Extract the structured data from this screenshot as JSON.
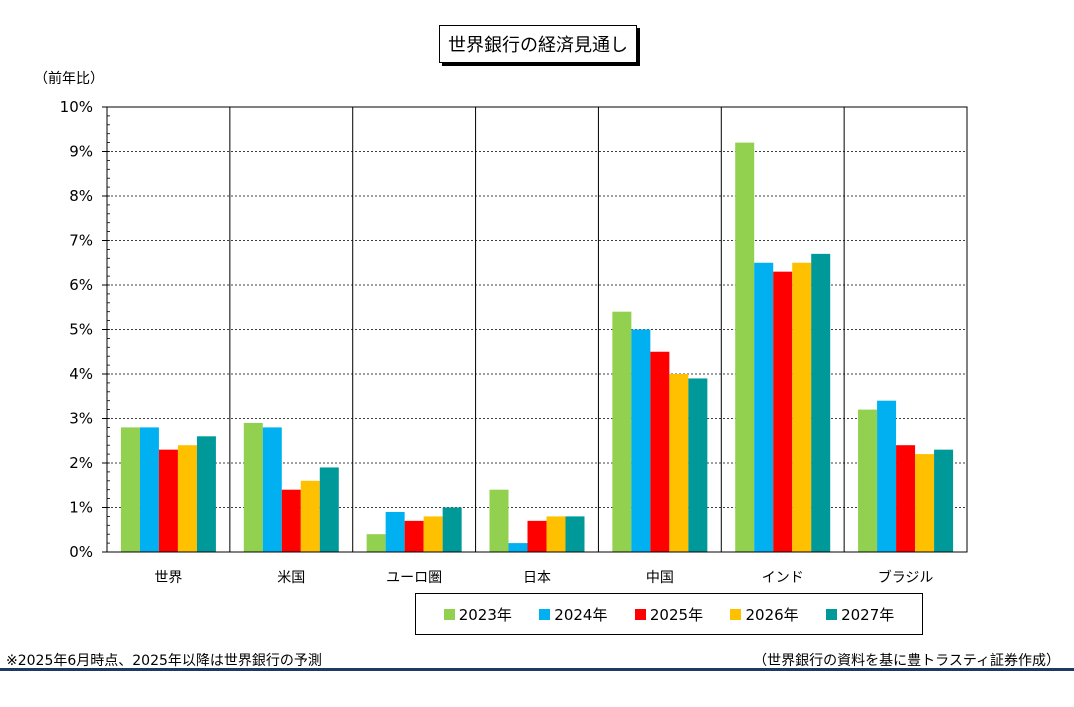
{
  "chart_data": {
    "type": "bar",
    "title": "世界銀行の経済見通し",
    "ylabel": "（前年比）",
    "ylim": [
      0,
      10
    ],
    "y_ticks": [
      "0%",
      "1%",
      "2%",
      "3%",
      "4%",
      "5%",
      "6%",
      "7%",
      "8%",
      "9%",
      "10%"
    ],
    "grid": true,
    "legend_position": "bottom",
    "categories": [
      "世界",
      "米国",
      "ユーロ圏",
      "日本",
      "中国",
      "インド",
      "ブラジル"
    ],
    "series": [
      {
        "name": "2023年",
        "color": "#92d050",
        "values": [
          2.8,
          2.9,
          0.4,
          1.4,
          5.4,
          9.2,
          3.2
        ]
      },
      {
        "name": "2024年",
        "color": "#00b0f0",
        "values": [
          2.8,
          2.8,
          0.9,
          0.2,
          5.0,
          6.5,
          3.4
        ]
      },
      {
        "name": "2025年",
        "color": "#ff0000",
        "values": [
          2.3,
          1.4,
          0.7,
          0.7,
          4.5,
          6.3,
          2.4
        ]
      },
      {
        "name": "2026年",
        "color": "#ffc000",
        "values": [
          2.4,
          1.6,
          0.8,
          0.8,
          4.0,
          6.5,
          2.2
        ]
      },
      {
        "name": "2027年",
        "color": "#009999",
        "values": [
          2.6,
          1.9,
          1.0,
          0.8,
          3.9,
          6.7,
          2.3
        ]
      }
    ]
  },
  "footnote": "※2025年6月時点、2025年以降は世界銀行の予測",
  "source": "（世界銀行の資料を基に豊トラスティ証券作成）",
  "colors": {
    "bottom_rule": "#1f3864"
  }
}
